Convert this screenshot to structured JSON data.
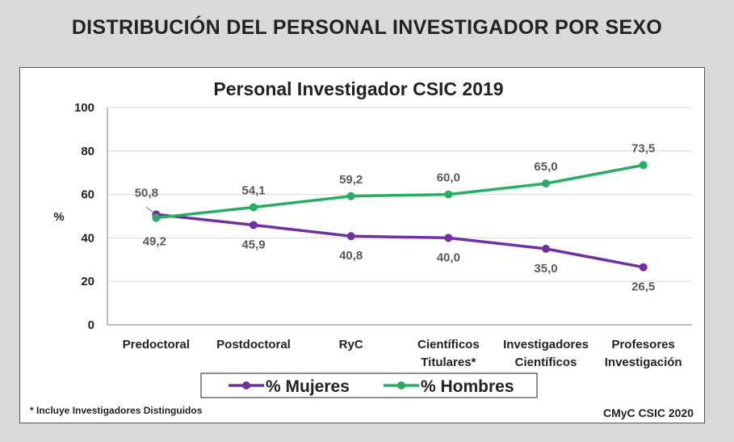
{
  "page_title": "DISTRIBUCIÓN DEL PERSONAL INVESTIGADOR POR SEXO",
  "footnote": "* Incluye Investigadores Distinguidos",
  "credit": "CMyC CSIC 2020",
  "chart_data": {
    "type": "line",
    "title": "Personal Investigador CSIC 2019",
    "xlabel": "",
    "ylabel": "%",
    "ylim": [
      0,
      100
    ],
    "yticks": [
      "0",
      "20",
      "40",
      "60",
      "80",
      "100"
    ],
    "grid": true,
    "legend_position": "bottom",
    "categories": [
      [
        "Predoctoral"
      ],
      [
        "Postdoctoral"
      ],
      [
        "RyC"
      ],
      [
        "Científicos",
        "Titulares*"
      ],
      [
        "Investigadores",
        "Científicos"
      ],
      [
        "Profesores",
        "Investigación"
      ]
    ],
    "series": [
      {
        "name": "% Mujeres",
        "color": "#7030a0",
        "values": [
          50.8,
          45.9,
          40.8,
          40.0,
          35.0,
          26.5
        ],
        "labels": [
          "50,8",
          "45,9",
          "40,8",
          "40,0",
          "35,0",
          "26,5"
        ]
      },
      {
        "name": "% Hombres",
        "color": "#27ae60",
        "values": [
          49.2,
          54.1,
          59.2,
          60.0,
          65.0,
          73.5
        ],
        "labels": [
          "49,2",
          "54,1",
          "59,2",
          "60,0",
          "65,0",
          "73,5"
        ]
      }
    ]
  }
}
